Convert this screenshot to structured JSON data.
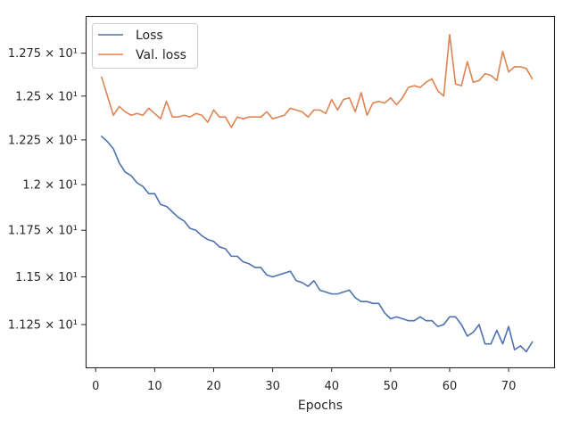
{
  "chart_data": {
    "type": "line",
    "title": "",
    "xlabel": "Epochs",
    "ylabel": "",
    "xlim": [
      -1.7,
      77.7
    ],
    "ylim": [
      11.03,
      12.97
    ],
    "x_ticks": [
      0,
      10,
      20,
      30,
      40,
      50,
      60,
      70
    ],
    "y_ticks": [
      {
        "value": 11.25,
        "label": "1.125 × 10¹"
      },
      {
        "value": 11.5,
        "label": "1.15 × 10¹"
      },
      {
        "value": 11.75,
        "label": "1.175 × 10¹"
      },
      {
        "value": 12.0,
        "label": "1.2 × 10¹"
      },
      {
        "value": 12.25,
        "label": "1.225 × 10¹"
      },
      {
        "value": 12.5,
        "label": "1.25 × 10¹"
      },
      {
        "value": 12.75,
        "label": "1.275 × 10¹"
      }
    ],
    "y_scale": "log",
    "grid": false,
    "legend_position": "top-left",
    "series": [
      {
        "name": "Loss",
        "color": "#4c72b0",
        "x": [
          1,
          2,
          3,
          4,
          5,
          6,
          7,
          8,
          9,
          10,
          11,
          12,
          13,
          14,
          15,
          16,
          17,
          18,
          19,
          20,
          21,
          22,
          23,
          24,
          25,
          26,
          27,
          28,
          29,
          30,
          31,
          32,
          33,
          34,
          35,
          36,
          37,
          38,
          39,
          40,
          41,
          42,
          43,
          44,
          45,
          46,
          47,
          48,
          49,
          50,
          51,
          52,
          53,
          54,
          55,
          56,
          57,
          58,
          59,
          60,
          61,
          62,
          63,
          64,
          65,
          66,
          67,
          68,
          69,
          70,
          71,
          72,
          73,
          74
        ],
        "values": [
          12.27,
          12.24,
          12.2,
          12.12,
          12.07,
          12.05,
          12.01,
          11.99,
          11.95,
          11.95,
          11.89,
          11.88,
          11.85,
          11.82,
          11.8,
          11.76,
          11.75,
          11.72,
          11.7,
          11.69,
          11.66,
          11.65,
          11.61,
          11.61,
          11.58,
          11.57,
          11.55,
          11.55,
          11.51,
          11.5,
          11.51,
          11.52,
          11.53,
          11.48,
          11.47,
          11.45,
          11.48,
          11.43,
          11.42,
          11.41,
          11.41,
          11.42,
          11.43,
          11.39,
          11.37,
          11.37,
          11.36,
          11.36,
          11.31,
          11.28,
          11.29,
          11.28,
          11.27,
          11.27,
          11.29,
          11.27,
          11.27,
          11.24,
          11.25,
          11.29,
          11.29,
          11.25,
          11.19,
          11.21,
          11.25,
          11.15,
          11.15,
          11.22,
          11.15,
          11.24,
          11.12,
          11.14,
          11.11,
          11.16
        ]
      },
      {
        "name": "Val. loss",
        "color": "#dd8452",
        "x": [
          1,
          2,
          3,
          4,
          5,
          6,
          7,
          8,
          9,
          10,
          11,
          12,
          13,
          14,
          15,
          16,
          17,
          18,
          19,
          20,
          21,
          22,
          23,
          24,
          25,
          26,
          27,
          28,
          29,
          30,
          31,
          32,
          33,
          34,
          35,
          36,
          37,
          38,
          39,
          40,
          41,
          42,
          43,
          44,
          45,
          46,
          47,
          48,
          49,
          50,
          51,
          52,
          53,
          54,
          55,
          56,
          57,
          58,
          59,
          60,
          61,
          62,
          63,
          64,
          65,
          66,
          67,
          68,
          69,
          70,
          71,
          72,
          73,
          74
        ],
        "values": [
          12.61,
          12.5,
          12.39,
          12.44,
          12.41,
          12.39,
          12.4,
          12.39,
          12.43,
          12.4,
          12.37,
          12.47,
          12.38,
          12.38,
          12.39,
          12.38,
          12.4,
          12.39,
          12.35,
          12.42,
          12.38,
          12.38,
          12.32,
          12.38,
          12.37,
          12.38,
          12.38,
          12.38,
          12.41,
          12.37,
          12.38,
          12.39,
          12.43,
          12.42,
          12.41,
          12.38,
          12.42,
          12.42,
          12.4,
          12.48,
          12.42,
          12.48,
          12.49,
          12.41,
          12.52,
          12.39,
          12.46,
          12.47,
          12.46,
          12.49,
          12.45,
          12.49,
          12.55,
          12.56,
          12.55,
          12.58,
          12.6,
          12.53,
          12.5,
          12.86,
          12.57,
          12.56,
          12.7,
          12.58,
          12.59,
          12.63,
          12.62,
          12.59,
          12.76,
          12.64,
          12.67,
          12.67,
          12.66,
          12.6
        ]
      }
    ]
  }
}
